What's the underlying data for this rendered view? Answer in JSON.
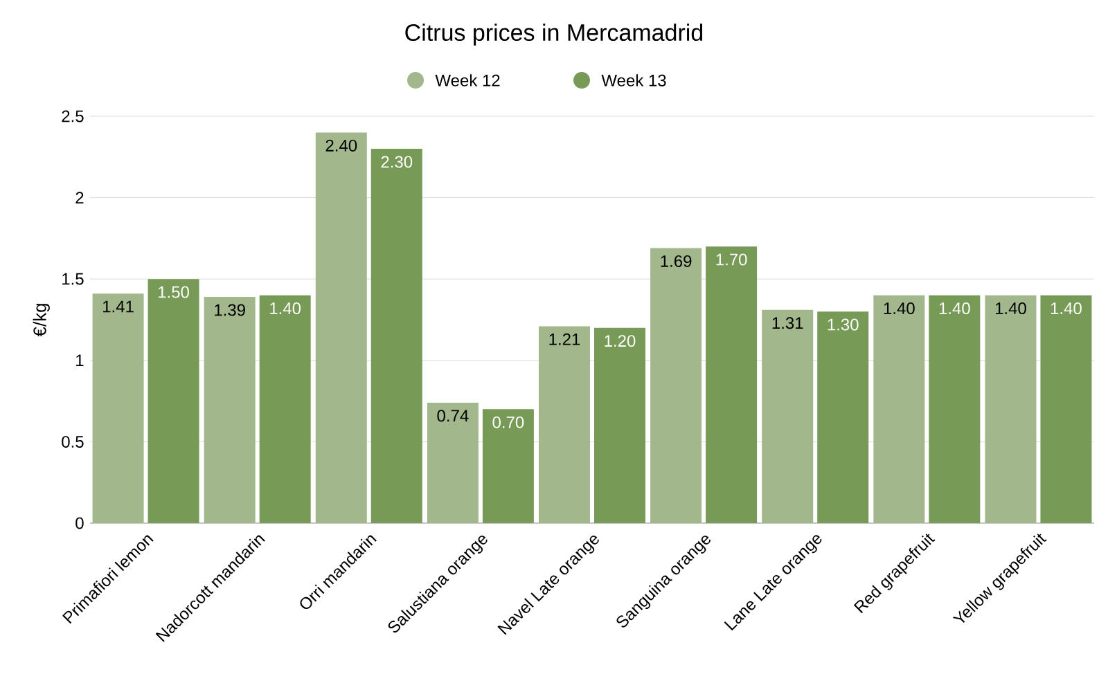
{
  "chart_data": {
    "type": "bar",
    "title": "Citrus prices in Mercamadrid",
    "ylabel": "€/kg",
    "categories": [
      "Primafiori lemon",
      "Nadorcott mandarin",
      "Orri mandarin",
      "Salustiana orange",
      "Navel Late orange",
      "Sanguina orange",
      "Lane Late orange",
      "Red grapefruit",
      "Yellow grapefruit"
    ],
    "series": [
      {
        "name": "Week 12",
        "color": "#a3b78d",
        "values": [
          1.41,
          1.39,
          2.4,
          0.74,
          1.21,
          1.69,
          1.31,
          1.4,
          1.4
        ],
        "value_labels": [
          "1.41",
          "1.39",
          "2.40",
          "0.74",
          "1.21",
          "1.69",
          "1.31",
          "1.40",
          "1.40"
        ]
      },
      {
        "name": "Week 13",
        "color": "#789a57",
        "values": [
          1.5,
          1.4,
          2.3,
          0.7,
          1.2,
          1.7,
          1.3,
          1.4,
          1.4
        ],
        "value_labels": [
          "1.50",
          "1.40",
          "2.30",
          "0.70",
          "1.20",
          "1.70",
          "1.30",
          "1.40",
          "1.40"
        ]
      }
    ],
    "ylim": [
      0,
      2.5
    ],
    "yticks": [
      0,
      0.5,
      1,
      1.5,
      2,
      2.5
    ],
    "grid": "y",
    "legend": "top"
  }
}
